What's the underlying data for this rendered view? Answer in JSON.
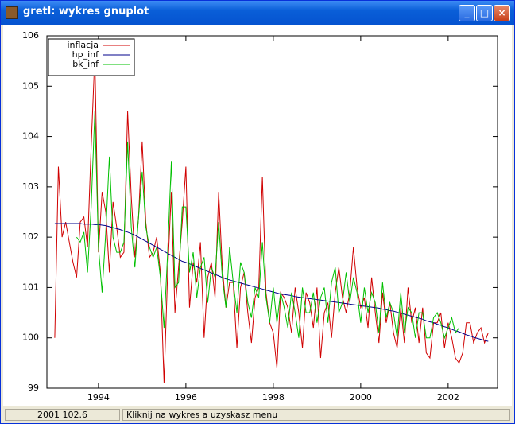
{
  "window": {
    "title": "gretl: wykres gnuplot",
    "status_left": "2001 102.6",
    "status_right": "Kliknij na wykres a uzyskasz menu"
  },
  "chart_data": {
    "type": "line",
    "x": [
      1993,
      1993.083,
      1993.167,
      1993.25,
      1993.333,
      1993.417,
      1993.5,
      1993.583,
      1993.667,
      1993.75,
      1993.833,
      1993.917,
      1994,
      1994.083,
      1994.167,
      1994.25,
      1994.333,
      1994.417,
      1994.5,
      1994.583,
      1994.667,
      1994.75,
      1994.833,
      1994.917,
      1995,
      1995.083,
      1995.167,
      1995.25,
      1995.333,
      1995.417,
      1995.5,
      1995.583,
      1995.667,
      1995.75,
      1995.833,
      1995.917,
      1996,
      1996.083,
      1996.167,
      1996.25,
      1996.333,
      1996.417,
      1996.5,
      1996.583,
      1996.667,
      1996.75,
      1996.833,
      1996.917,
      1997,
      1997.083,
      1997.167,
      1997.25,
      1997.333,
      1997.417,
      1997.5,
      1997.583,
      1997.667,
      1997.75,
      1997.833,
      1997.917,
      1998,
      1998.083,
      1998.167,
      1998.25,
      1998.333,
      1998.417,
      1998.5,
      1998.583,
      1998.667,
      1998.75,
      1998.833,
      1998.917,
      1999,
      1999.083,
      1999.167,
      1999.25,
      1999.333,
      1999.417,
      1999.5,
      1999.583,
      1999.667,
      1999.75,
      1999.833,
      1999.917,
      2000,
      2000.083,
      2000.167,
      2000.25,
      2000.333,
      2000.417,
      2000.5,
      2000.583,
      2000.667,
      2000.75,
      2000.833,
      2000.917,
      2001,
      2001.083,
      2001.167,
      2001.25,
      2001.333,
      2001.417,
      2001.5,
      2001.583,
      2001.667,
      2001.75,
      2001.833,
      2001.917,
      2002,
      2002.083,
      2002.167,
      2002.25,
      2002.333,
      2002.417,
      2002.5,
      2002.583,
      2002.667,
      2002.75,
      2002.833,
      2002.917
    ],
    "series": [
      {
        "name": "inflacja",
        "color": "#d00000",
        "values": [
          100.0,
          103.4,
          102.0,
          102.3,
          101.9,
          101.5,
          101.2,
          102.3,
          102.4,
          101.8,
          103.8,
          105.6,
          101.7,
          102.9,
          102.5,
          101.3,
          102.7,
          102.2,
          101.6,
          101.7,
          104.5,
          102.8,
          101.6,
          102.4,
          103.9,
          102.3,
          101.6,
          101.7,
          102.0,
          101.3,
          99.1,
          101.3,
          102.9,
          100.5,
          101.4,
          102.3,
          103.4,
          100.6,
          101.5,
          101.1,
          101.9,
          100.0,
          101.2,
          101.5,
          100.8,
          102.9,
          101.4,
          100.6,
          101.1,
          101.1,
          99.8,
          101.0,
          101.3,
          100.5,
          99.9,
          100.8,
          101.0,
          103.2,
          100.9,
          100.3,
          100.1,
          99.4,
          100.9,
          100.8,
          100.6,
          100.1,
          101.0,
          100.5,
          99.8,
          100.9,
          100.7,
          100.2,
          101.0,
          99.6,
          100.5,
          100.7,
          100.0,
          100.9,
          101.4,
          100.8,
          100.5,
          100.9,
          101.8,
          101.0,
          100.6,
          100.8,
          100.2,
          101.2,
          100.5,
          99.9,
          100.9,
          100.3,
          100.7,
          100.1,
          99.8,
          100.6,
          99.9,
          101.0,
          100.3,
          100.6,
          99.9,
          100.6,
          99.7,
          99.6,
          100.3,
          100.3,
          100.5,
          99.8,
          100.3,
          100.0,
          99.6,
          99.5,
          99.7,
          100.3,
          100.3,
          99.9,
          100.1,
          100.2,
          99.9,
          100.1
        ]
      },
      {
        "name": "hp_inf",
        "color": "#00008b",
        "values": [
          102.27,
          102.27,
          102.27,
          102.27,
          102.27,
          102.27,
          102.27,
          102.27,
          102.26,
          102.26,
          102.26,
          102.25,
          102.25,
          102.24,
          102.23,
          102.21,
          102.19,
          102.17,
          102.15,
          102.12,
          102.1,
          102.07,
          102.04,
          102.0,
          101.96,
          101.92,
          101.88,
          101.84,
          101.8,
          101.76,
          101.72,
          101.68,
          101.64,
          101.6,
          101.56,
          101.52,
          101.5,
          101.47,
          101.44,
          101.41,
          101.38,
          101.35,
          101.32,
          101.29,
          101.26,
          101.23,
          101.2,
          101.17,
          101.15,
          101.13,
          101.11,
          101.09,
          101.07,
          101.05,
          101.03,
          101.01,
          100.99,
          100.97,
          100.95,
          100.93,
          100.91,
          100.89,
          100.87,
          100.86,
          100.85,
          100.84,
          100.82,
          100.81,
          100.8,
          100.79,
          100.78,
          100.77,
          100.76,
          100.75,
          100.74,
          100.73,
          100.72,
          100.71,
          100.7,
          100.69,
          100.68,
          100.67,
          100.66,
          100.65,
          100.64,
          100.63,
          100.62,
          100.61,
          100.6,
          100.59,
          100.57,
          100.56,
          100.54,
          100.53,
          100.51,
          100.49,
          100.47,
          100.45,
          100.43,
          100.41,
          100.39,
          100.37,
          100.34,
          100.32,
          100.3,
          100.27,
          100.25,
          100.22,
          100.2,
          100.17,
          100.14,
          100.12,
          100.09,
          100.06,
          100.04,
          100.01,
          99.99,
          99.97,
          99.95,
          99.93
        ]
      },
      {
        "name": "bk_inf",
        "color": "#00c000",
        "values": [
          null,
          null,
          null,
          null,
          null,
          null,
          102.0,
          101.9,
          102.1,
          101.3,
          102.6,
          104.5,
          101.8,
          100.9,
          102.1,
          103.6,
          102.0,
          101.7,
          101.7,
          101.9,
          103.9,
          102.2,
          101.4,
          102.4,
          103.3,
          102.2,
          101.8,
          101.6,
          101.8,
          101.2,
          100.2,
          101.7,
          103.5,
          101.0,
          101.1,
          102.6,
          102.6,
          101.3,
          101.7,
          100.8,
          101.4,
          101.6,
          100.7,
          101.4,
          101.2,
          102.3,
          101.2,
          100.6,
          101.8,
          101.1,
          100.5,
          101.5,
          101.3,
          100.7,
          100.4,
          101.0,
          100.8,
          101.9,
          100.8,
          100.3,
          101.0,
          100.3,
          100.9,
          100.6,
          100.2,
          100.9,
          100.5,
          100.0,
          101.0,
          100.5,
          100.5,
          100.9,
          100.3,
          100.8,
          101.0,
          100.3,
          101.1,
          101.4,
          100.5,
          100.7,
          101.3,
          100.7,
          101.2,
          100.9,
          100.3,
          101.0,
          100.5,
          100.9,
          100.7,
          100.1,
          101.1,
          100.4,
          100.7,
          100.5,
          100.0,
          100.9,
          100.1,
          100.6,
          100.5,
          100.0,
          100.5,
          100.5,
          100.0,
          100.0,
          100.4,
          100.5,
          100.3,
          100.0,
          100.2,
          100.4,
          100.1,
          100.2,
          null,
          null,
          null,
          null,
          null,
          null,
          null,
          null
        ]
      }
    ],
    "xlim": [
      1992.82,
      2003.13
    ],
    "xticks": [
      1994,
      1996,
      1998,
      2000,
      2002
    ],
    "ylim": [
      99,
      106
    ],
    "yticks": [
      99,
      100,
      101,
      102,
      103,
      104,
      105,
      106
    ],
    "grid": false,
    "legend": "top-left"
  }
}
